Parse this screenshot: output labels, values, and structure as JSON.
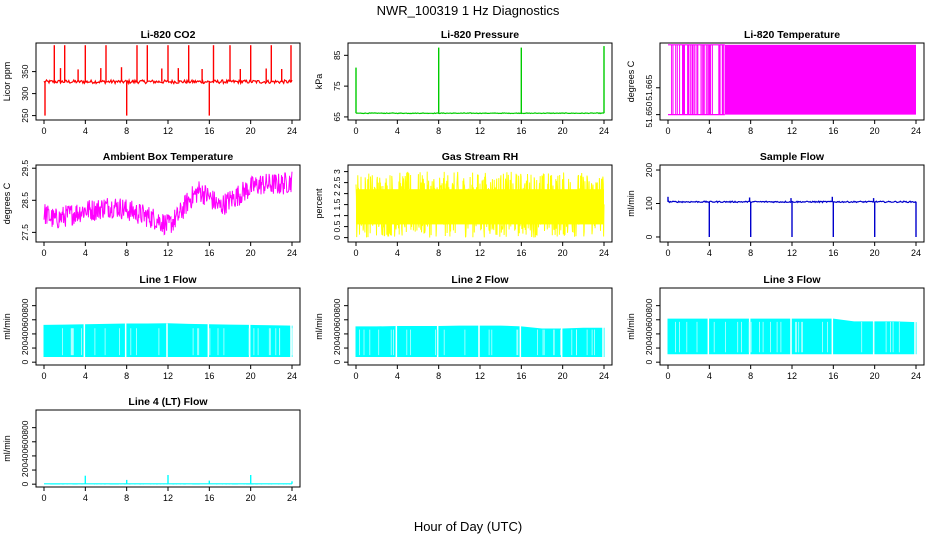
{
  "figure": {
    "title": "NWR_100319  1 Hz Diagnostics",
    "xlabel": "Hour of Day (UTC)"
  },
  "chart_data": [
    {
      "type": "line",
      "title": "Li-820 CO2",
      "ylabel": "Licor ppm",
      "xlim": [
        0,
        24
      ],
      "ylim": [
        240,
        415
      ],
      "xticks": [
        0,
        4,
        8,
        12,
        16,
        20,
        24
      ],
      "yticks": [
        250,
        300,
        350
      ],
      "color": "#ff0000",
      "baseline": 327,
      "noise": 4,
      "spikes": [
        {
          "x": 1.0,
          "y": 410
        },
        {
          "x": 1.6,
          "y": 358
        },
        {
          "x": 2.0,
          "y": 410
        },
        {
          "x": 3.3,
          "y": 355
        },
        {
          "x": 4.0,
          "y": 410
        },
        {
          "x": 5.5,
          "y": 358
        },
        {
          "x": 6.0,
          "y": 410
        },
        {
          "x": 7.5,
          "y": 360
        },
        {
          "x": 8.0,
          "y": 250
        },
        {
          "x": 9.0,
          "y": 410
        },
        {
          "x": 10.0,
          "y": 410
        },
        {
          "x": 11.4,
          "y": 357
        },
        {
          "x": 12.0,
          "y": 410
        },
        {
          "x": 13.0,
          "y": 358
        },
        {
          "x": 14.0,
          "y": 410
        },
        {
          "x": 15.3,
          "y": 356
        },
        {
          "x": 16.0,
          "y": 250
        },
        {
          "x": 16.4,
          "y": 410
        },
        {
          "x": 18.0,
          "y": 410
        },
        {
          "x": 19.0,
          "y": 356
        },
        {
          "x": 20.0,
          "y": 410
        },
        {
          "x": 21.5,
          "y": 357
        },
        {
          "x": 22.0,
          "y": 410
        },
        {
          "x": 23.0,
          "y": 356
        },
        {
          "x": 23.9,
          "y": 410
        },
        {
          "x": 0.1,
          "y": 250
        }
      ]
    },
    {
      "type": "line",
      "title": "Li-820 Pressure",
      "ylabel": "kPa",
      "xlim": [
        0,
        24
      ],
      "ylim": [
        64,
        89
      ],
      "xticks": [
        0,
        4,
        8,
        12,
        16,
        20,
        24
      ],
      "yticks": [
        65,
        75,
        85
      ],
      "color": "#00cc00",
      "baseline": 66.2,
      "noise": 0.1,
      "spikes": [
        {
          "x": 0.0,
          "y": 81
        },
        {
          "x": 8.0,
          "y": 87.5
        },
        {
          "x": 16.0,
          "y": 87.5
        },
        {
          "x": 24.0,
          "y": 88
        }
      ]
    },
    {
      "type": "line",
      "title": "Li-820 Temperature",
      "ylabel": "degrees C",
      "xlim": [
        0,
        24
      ],
      "ylim": [
        51.647,
        51.69
      ],
      "xticks": [
        0,
        4,
        8,
        12,
        16,
        20,
        24
      ],
      "yticks": [
        51.65,
        51.665
      ],
      "yticklabels": [
        "51.650",
        "51.665"
      ],
      "color": "#ff00ff",
      "band": [
        51.65,
        51.689
      ],
      "solid_from": 5.5
    },
    {
      "type": "line",
      "title": "Ambient Box Temperature",
      "ylabel": "degrees C",
      "xlim": [
        0,
        24
      ],
      "ylim": [
        27.2,
        29.6
      ],
      "xticks": [
        0,
        4,
        8,
        12,
        16,
        20,
        24
      ],
      "yticks": [
        27.5,
        28.5,
        29.5
      ],
      "color": "#ff00ff",
      "x": [
        0,
        1,
        2,
        3,
        4,
        5,
        6,
        7,
        8,
        9,
        10,
        11,
        12,
        13,
        14,
        15,
        16,
        17,
        18,
        19,
        20,
        21,
        22,
        23,
        24
      ],
      "y": [
        28.1,
        27.9,
        28.0,
        28.1,
        28.2,
        28.2,
        28.3,
        28.3,
        28.2,
        28.1,
        28.0,
        27.9,
        27.7,
        28.0,
        28.5,
        28.8,
        28.6,
        28.3,
        28.5,
        28.7,
        28.9,
        29.0,
        29.0,
        29.0,
        29.1
      ],
      "spread": 0.35
    },
    {
      "type": "line",
      "title": "Gas Stream RH",
      "ylabel": "percent",
      "xlim": [
        0,
        24
      ],
      "ylim": [
        -0.2,
        3.3
      ],
      "xticks": [
        0,
        4,
        8,
        12,
        16,
        20,
        24
      ],
      "yticks": [
        0.0,
        0.5,
        1.0,
        1.5,
        2.0,
        2.5,
        3.0
      ],
      "color": "#ffff00",
      "band": [
        0.0,
        3.0
      ],
      "center": 1.4
    },
    {
      "type": "line",
      "title": "Sample Flow",
      "ylabel": "ml/min",
      "xlim": [
        0,
        24
      ],
      "ylim": [
        -15,
        215
      ],
      "xticks": [
        0,
        4,
        8,
        12,
        16,
        20,
        24
      ],
      "yticks": [
        0,
        100,
        200
      ],
      "color": "#0000cc",
      "baseline": 105,
      "noise": 2,
      "spikes": [
        {
          "x": 0.0,
          "y": 120
        },
        {
          "x": 4.0,
          "y": 0
        },
        {
          "x": 8.0,
          "y": 0
        },
        {
          "x": 7.9,
          "y": 118
        },
        {
          "x": 12.0,
          "y": 0
        },
        {
          "x": 11.9,
          "y": 116
        },
        {
          "x": 16.0,
          "y": 0
        },
        {
          "x": 15.9,
          "y": 120
        },
        {
          "x": 20.0,
          "y": 0
        },
        {
          "x": 19.9,
          "y": 116
        },
        {
          "x": 24.0,
          "y": 0
        }
      ]
    },
    {
      "type": "area",
      "title": "Line 1 Flow",
      "ylabel": "ml/min",
      "xlim": [
        0,
        24
      ],
      "ylim": [
        -40,
        1050
      ],
      "xticks": [
        0,
        4,
        8,
        12,
        16,
        20,
        24
      ],
      "yticks": [
        0,
        200,
        400,
        600,
        800
      ],
      "color": "#00ffff",
      "low": 80,
      "high": [
        520,
        525,
        530,
        535,
        540,
        540,
        545,
        535,
        530,
        525,
        520,
        515,
        510
      ],
      "gaps": [
        4.0,
        8.0,
        12.0,
        16.0,
        20.0,
        24.0
      ]
    },
    {
      "type": "area",
      "title": "Line 2 Flow",
      "ylabel": "ml/min",
      "xlim": [
        0,
        24
      ],
      "ylim": [
        -40,
        1050
      ],
      "xticks": [
        0,
        4,
        8,
        12,
        16,
        20,
        24
      ],
      "yticks": [
        0,
        200,
        400,
        600,
        800
      ],
      "color": "#00ffff",
      "low": 80,
      "high": [
        500,
        500,
        505,
        505,
        505,
        510,
        510,
        510,
        500,
        470,
        470,
        480,
        480
      ],
      "gaps": [
        4.0,
        8.0,
        12.0,
        16.0,
        20.0,
        24.0
      ]
    },
    {
      "type": "area",
      "title": "Line 3 Flow",
      "ylabel": "ml/min",
      "xlim": [
        0,
        24
      ],
      "ylim": [
        -40,
        1050
      ],
      "xticks": [
        0,
        4,
        8,
        12,
        16,
        20,
        24
      ],
      "yticks": [
        0,
        200,
        400,
        600,
        800
      ],
      "color": "#00ffff",
      "low": 120,
      "high": [
        610,
        610,
        610,
        610,
        610,
        610,
        610,
        610,
        610,
        570,
        570,
        570,
        560
      ],
      "gaps": [
        4.0,
        8.0,
        12.0,
        16.0,
        20.0,
        24.0
      ]
    },
    {
      "type": "line",
      "title": "Line 4 (LT) Flow",
      "ylabel": "ml/min",
      "xlim": [
        0,
        24
      ],
      "ylim": [
        -40,
        1050
      ],
      "xticks": [
        0,
        4,
        8,
        12,
        16,
        20,
        24
      ],
      "yticks": [
        0,
        200,
        400,
        600,
        800
      ],
      "color": "#00ffff",
      "baseline": 5,
      "noise": 1,
      "spikes": [
        {
          "x": 4.0,
          "y": 120
        },
        {
          "x": 8.0,
          "y": 60
        },
        {
          "x": 12.0,
          "y": 130
        },
        {
          "x": 16.0,
          "y": 50
        },
        {
          "x": 20.0,
          "y": 130
        },
        {
          "x": 24.0,
          "y": 40
        }
      ]
    }
  ]
}
